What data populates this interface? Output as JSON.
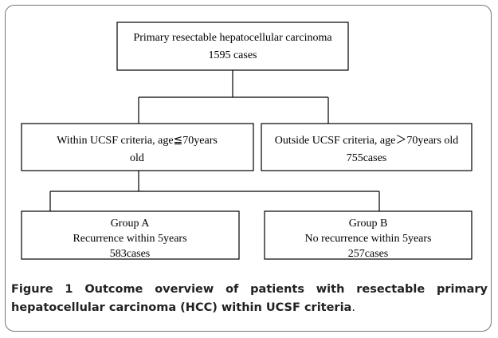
{
  "nodes": [
    {
      "lines": [
        "Primary resectable hepatocellular carcinoma",
        "1595 cases"
      ]
    },
    {
      "lines": [
        "Within UCSF criteria, age≦70years",
        "old"
      ]
    },
    {
      "lines": [
        "Outside UCSF criteria, age＞70years old",
        "755cases"
      ]
    },
    {
      "lines": [
        "Group A",
        "Recurrence within 5years",
        "583cases"
      ]
    },
    {
      "lines": [
        "Group B",
        "No recurrence within 5years",
        "257cases"
      ]
    }
  ],
  "caption": {
    "label": "Figure 1",
    "text": "Outcome overview of patients with resectable primary hepatocellular carcinoma (HCC) within UCSF criteria",
    "end": "."
  }
}
